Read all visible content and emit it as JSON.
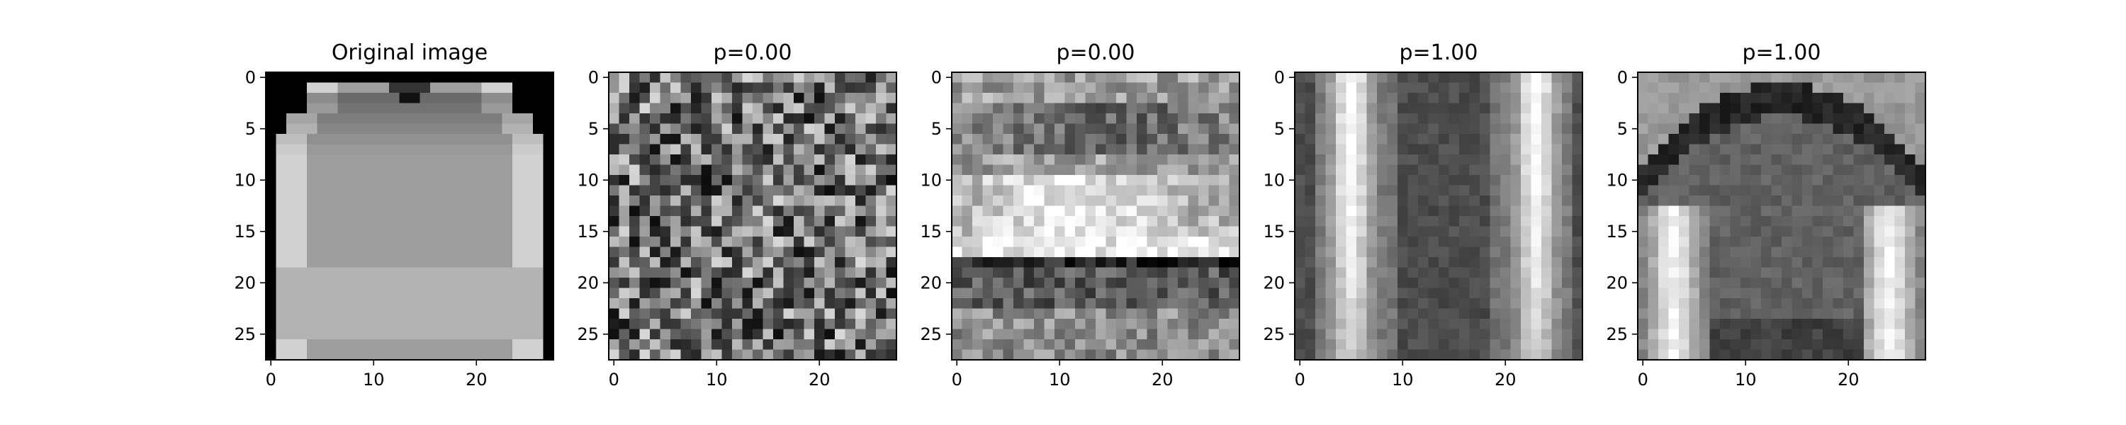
{
  "chart_data": [
    {
      "type": "heatmap",
      "title": "Original image",
      "image": "garment-pullover",
      "grid": [
        28,
        28
      ],
      "xticks": [
        "0",
        "10",
        "20"
      ],
      "yticks": [
        "0",
        "5",
        "10",
        "15",
        "20",
        "25"
      ],
      "colormap": "gray",
      "xlim": [
        -0.5,
        27.5
      ],
      "ylim": [
        27.5,
        -0.5
      ]
    },
    {
      "type": "heatmap",
      "title": "p=0.00",
      "image": "random-noise",
      "grid": [
        28,
        28
      ],
      "xticks": [
        "0",
        "10",
        "20"
      ],
      "yticks": [
        "0",
        "5",
        "10",
        "15",
        "20",
        "25"
      ],
      "colormap": "gray",
      "xlim": [
        -0.5,
        27.5
      ],
      "ylim": [
        27.5,
        -0.5
      ]
    },
    {
      "type": "heatmap",
      "title": "p=0.00",
      "image": "horizontal-shoe-pattern",
      "grid": [
        28,
        28
      ],
      "xticks": [
        "0",
        "10",
        "20"
      ],
      "yticks": [
        "0",
        "5",
        "10",
        "15",
        "20",
        "25"
      ],
      "colormap": "gray",
      "xlim": [
        -0.5,
        27.5
      ],
      "ylim": [
        27.5,
        -0.5
      ]
    },
    {
      "type": "heatmap",
      "title": "p=1.00",
      "image": "vertical-sleeves-pattern",
      "grid": [
        28,
        28
      ],
      "xticks": [
        "0",
        "10",
        "20"
      ],
      "yticks": [
        "0",
        "5",
        "10",
        "15",
        "20",
        "25"
      ],
      "colormap": "gray",
      "xlim": [
        -0.5,
        27.5
      ],
      "ylim": [
        27.5,
        -0.5
      ]
    },
    {
      "type": "heatmap",
      "title": "p=1.00",
      "image": "shirt-silhouette-pattern",
      "grid": [
        28,
        28
      ],
      "xticks": [
        "0",
        "10",
        "20"
      ],
      "yticks": [
        "0",
        "5",
        "10",
        "15",
        "20",
        "25"
      ],
      "colormap": "gray",
      "xlim": [
        -0.5,
        27.5
      ],
      "ylim": [
        27.5,
        -0.5
      ]
    }
  ]
}
